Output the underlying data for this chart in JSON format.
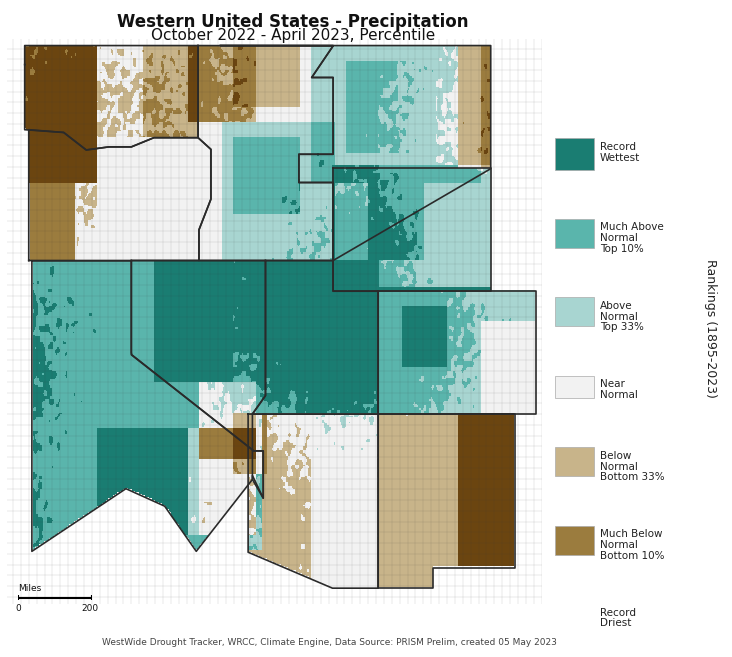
{
  "title_line1": "Western United States - Precipitation",
  "title_line2": "October 2022 - April 2023, Percentile",
  "footnote": "WestWide Drought Tracker, WRCC, Climate Engine, Data Source: PRISM Prelim, created 05 May 2023",
  "scale_label": "Miles",
  "legend_title": "Rankings (1895-2023)",
  "legend_items": [
    {
      "label": "Record\nWettest",
      "color": "#1a7d72"
    },
    {
      "label": "Much Above\nNormal\nTop 10%",
      "color": "#5ab5ac"
    },
    {
      "label": "Above\nNormal\nTop 33%",
      "color": "#a8d5d1"
    },
    {
      "label": "Near\nNormal",
      "color": "#f2f2f2"
    },
    {
      "label": "Below\nNormal\nBottom 33%",
      "color": "#c8b48a"
    },
    {
      "label": "Much Below\nNormal\nBottom 10%",
      "color": "#9b7c3e"
    },
    {
      "label": "Record\nDriest",
      "color": "#6b4510"
    }
  ],
  "background_color": "#ffffff",
  "map_bg": "#f8f8f8",
  "title_fontsize": 12,
  "subtitle_fontsize": 11,
  "legend_fontsize": 7.5,
  "footnote_fontsize": 6.5,
  "lon_min": -125.5,
  "lon_max": -101.8,
  "lat_min": 30.8,
  "lat_max": 49.2
}
